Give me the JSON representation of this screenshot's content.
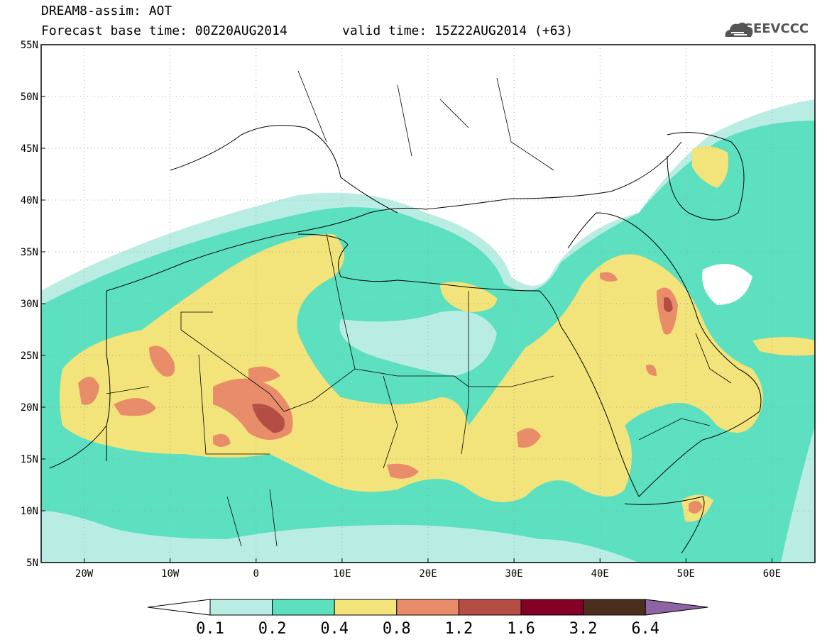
{
  "header": {
    "line1": "DREAM8-assim: AOT",
    "line2": "Forecast base time: 00Z20AUG2014",
    "valid": "valid time: 15Z22AUG2014 (+63)"
  },
  "logo": {
    "text": "SEEVCCC",
    "icon": "cloud-icon"
  },
  "map": {
    "lat_labels": [
      "55N",
      "50N",
      "45N",
      "40N",
      "35N",
      "30N",
      "25N",
      "20N",
      "15N",
      "10N",
      "5N"
    ],
    "lon_labels": [
      "20W",
      "10W",
      "0",
      "10E",
      "20E",
      "30E",
      "40E",
      "50E",
      "60E"
    ],
    "extent": {
      "lon_min": -25,
      "lon_max": 65,
      "lat_min": 5,
      "lat_max": 55
    }
  },
  "colorbar": {
    "colors": [
      "#ffffff",
      "#b9ede3",
      "#5ce0c0",
      "#f2e37a",
      "#e88c6a",
      "#b44e45",
      "#850026",
      "#4b2e1e",
      "#8e63a4"
    ],
    "labels": [
      "0.1",
      "0.2",
      "0.4",
      "0.8",
      "1.2",
      "1.6",
      "3.2",
      "6.4"
    ]
  }
}
